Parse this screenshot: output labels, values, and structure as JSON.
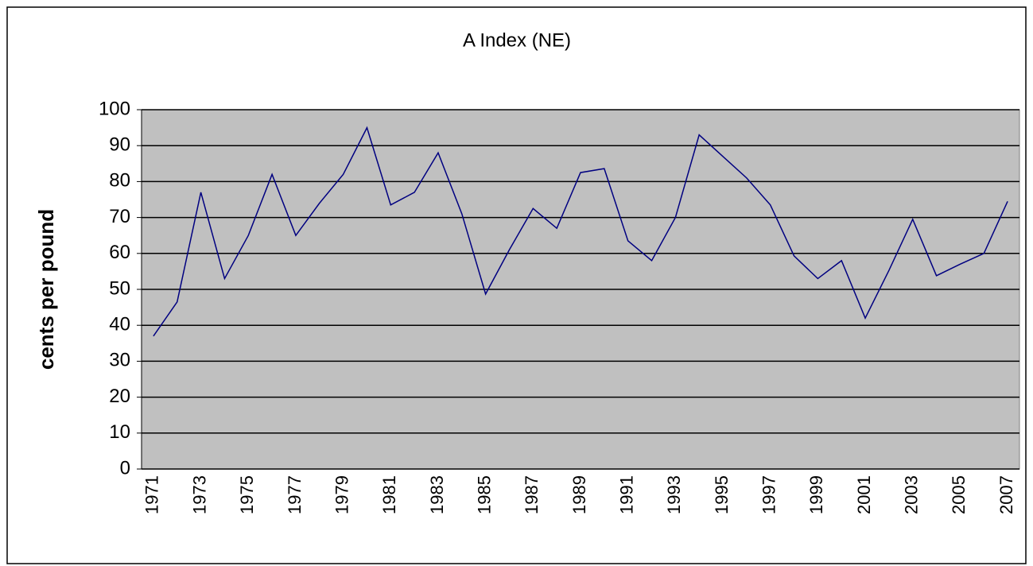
{
  "chart_data": {
    "type": "line",
    "title": "A Index (NE)",
    "y_label": "cents per pound",
    "categories": [
      "1971",
      null,
      "1973",
      null,
      "1975",
      null,
      "1977",
      null,
      "1979",
      null,
      "1981",
      null,
      "1983",
      null,
      "1985",
      null,
      "1987",
      null,
      "1989",
      null,
      "1991",
      null,
      "1993",
      null,
      "1995",
      null,
      "1997",
      null,
      "1999",
      null,
      "2001",
      null,
      "2003",
      null,
      "2005",
      null,
      "2007"
    ],
    "values": [
      37,
      46.5,
      77,
      53,
      65,
      82,
      65,
      74,
      82,
      95,
      73.5,
      77,
      88,
      71,
      48.7,
      61,
      72.5,
      67,
      82.5,
      83.6,
      63.5,
      58,
      70,
      93,
      87,
      81,
      73.5,
      59.3,
      53,
      58,
      42,
      55.3,
      69.5,
      53.8,
      57,
      60,
      74.5
    ],
    "color": "#000080",
    "plot_background": "#c0c0c0",
    "ylim": [
      0,
      100
    ],
    "yticks": [
      0,
      10,
      20,
      30,
      40,
      50,
      60,
      70,
      80,
      90,
      100
    ],
    "grid": true
  }
}
